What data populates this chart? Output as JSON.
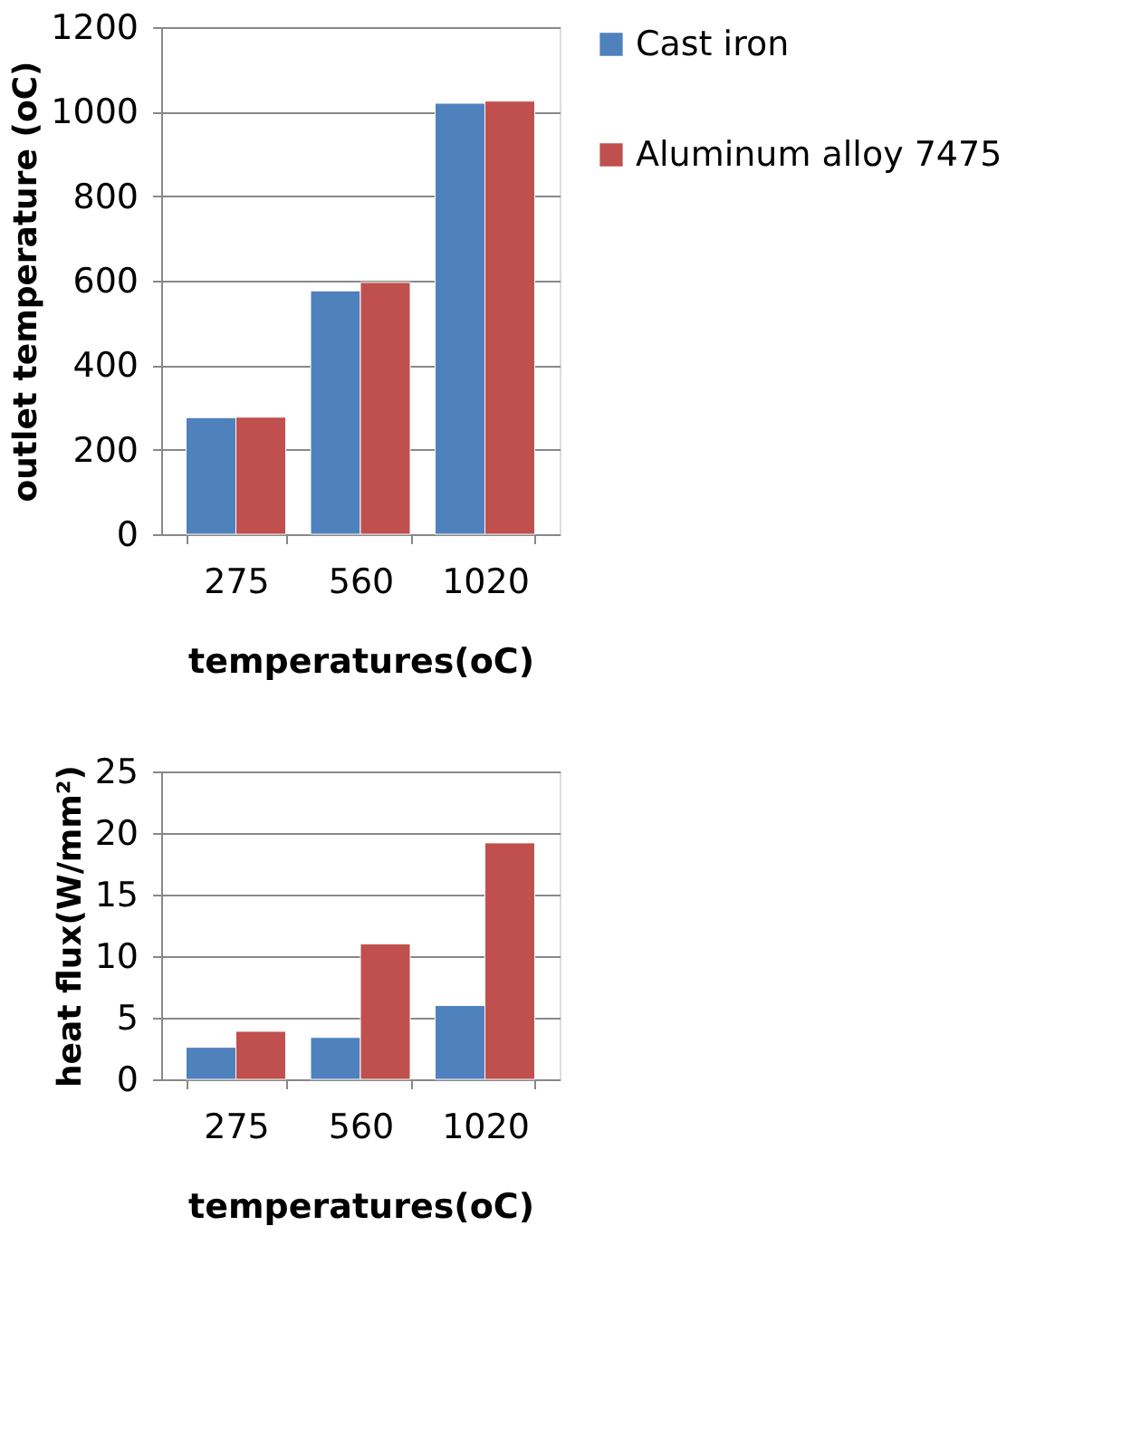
{
  "chart_data": [
    {
      "type": "bar",
      "categories": [
        "275",
        "560",
        "1020"
      ],
      "xlabel": "temperatures(oC)",
      "ylabel": "outlet temperature (oC)",
      "ylim": [
        0,
        1200
      ],
      "yticks": [
        0,
        200,
        400,
        600,
        800,
        1000,
        1200
      ],
      "grid": "y",
      "legend": "right",
      "series": [
        {
          "name": "Cast iron",
          "color": "#4f81bd",
          "values": [
            276,
            576,
            1020
          ]
        },
        {
          "name": "Aluminum alloy 7475",
          "color": "#c0504d",
          "values": [
            277,
            596,
            1025
          ]
        }
      ]
    },
    {
      "type": "bar",
      "categories": [
        "275",
        "560",
        "1020"
      ],
      "xlabel": "temperatures(oC)",
      "ylabel": "heat flux(W/mm²)",
      "ylim": [
        0,
        25
      ],
      "yticks": [
        0,
        5,
        10,
        15,
        20,
        25
      ],
      "grid": "y",
      "legend": "right",
      "series": [
        {
          "name": "Cast iron",
          "color": "#4f81bd",
          "values": [
            2.6,
            3.4,
            6.0
          ]
        },
        {
          "name": "Aluminum alloy 7475",
          "color": "#c0504d",
          "values": [
            3.9,
            11.0,
            19.2
          ]
        }
      ]
    }
  ]
}
